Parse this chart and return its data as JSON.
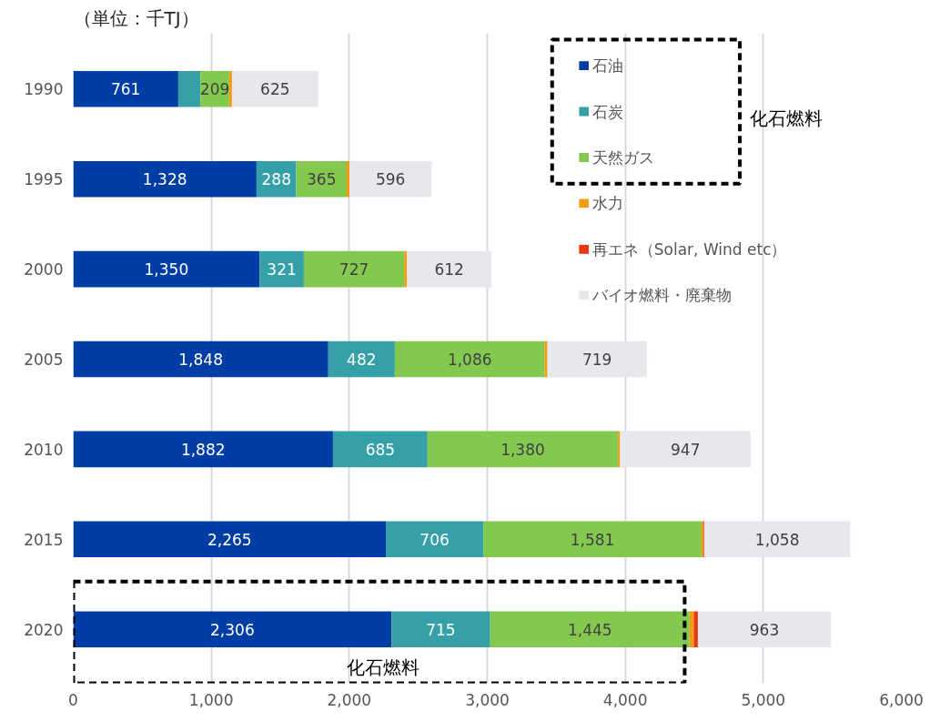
{
  "chart_data": {
    "type": "bar",
    "orientation": "horizontal",
    "stacked": true,
    "title": "（単位：千TJ）",
    "categories": [
      "1990",
      "1995",
      "2000",
      "2005",
      "2010",
      "2015",
      "2020"
    ],
    "series": [
      {
        "name": "石油",
        "color": "#003da5",
        "values": [
          761,
          1328,
          1350,
          1848,
          1882,
          2265,
          2306
        ],
        "value_labels": [
          "761",
          "1,328",
          "1,350",
          "1,848",
          "1,882",
          "2,265",
          "2,306"
        ]
      },
      {
        "name": "石炭",
        "color": "#36a0a8",
        "values": [
          160,
          288,
          321,
          482,
          685,
          706,
          715
        ],
        "value_labels": [
          null,
          "288",
          "321",
          "482",
          "685",
          "706",
          "715"
        ]
      },
      {
        "name": "天然ガス",
        "color": "#84c94f",
        "values": [
          209,
          365,
          727,
          1086,
          1380,
          1581,
          1445
        ],
        "value_labels": [
          "209",
          "365",
          "727",
          "1,086",
          "1,380",
          "1,581",
          "1,445"
        ]
      },
      {
        "name": "水力",
        "color": "#f39c12",
        "values": [
          20,
          20,
          20,
          20,
          15,
          15,
          30
        ]
      },
      {
        "name": "再エネ（Solar, Wind etc）",
        "color": "#e8380d",
        "values": [
          0,
          0,
          0,
          0,
          0,
          5,
          30
        ]
      },
      {
        "name": "バイオ燃料・廃棄物",
        "color": "#e6e8ed",
        "values": [
          625,
          596,
          612,
          719,
          947,
          1058,
          963
        ],
        "value_labels": [
          "625",
          "596",
          "612",
          "719",
          "947",
          "1,058",
          "963"
        ]
      }
    ],
    "xlim": [
      0,
      6000
    ],
    "xticks": [
      0,
      {
        "value": 1000,
        "label": "1,000"
      },
      {
        "value": 2000,
        "label": "2,000"
      },
      {
        "value": 3000,
        "label": "3,000"
      },
      {
        "value": 4000,
        "label": "4,000"
      },
      {
        "value": 5000,
        "label": "5,000"
      },
      {
        "value": 6000,
        "label": "6,000"
      }
    ],
    "grid": "x",
    "legend": "top right",
    "annotations": [
      "化石燃料",
      "化石燃料"
    ]
  }
}
